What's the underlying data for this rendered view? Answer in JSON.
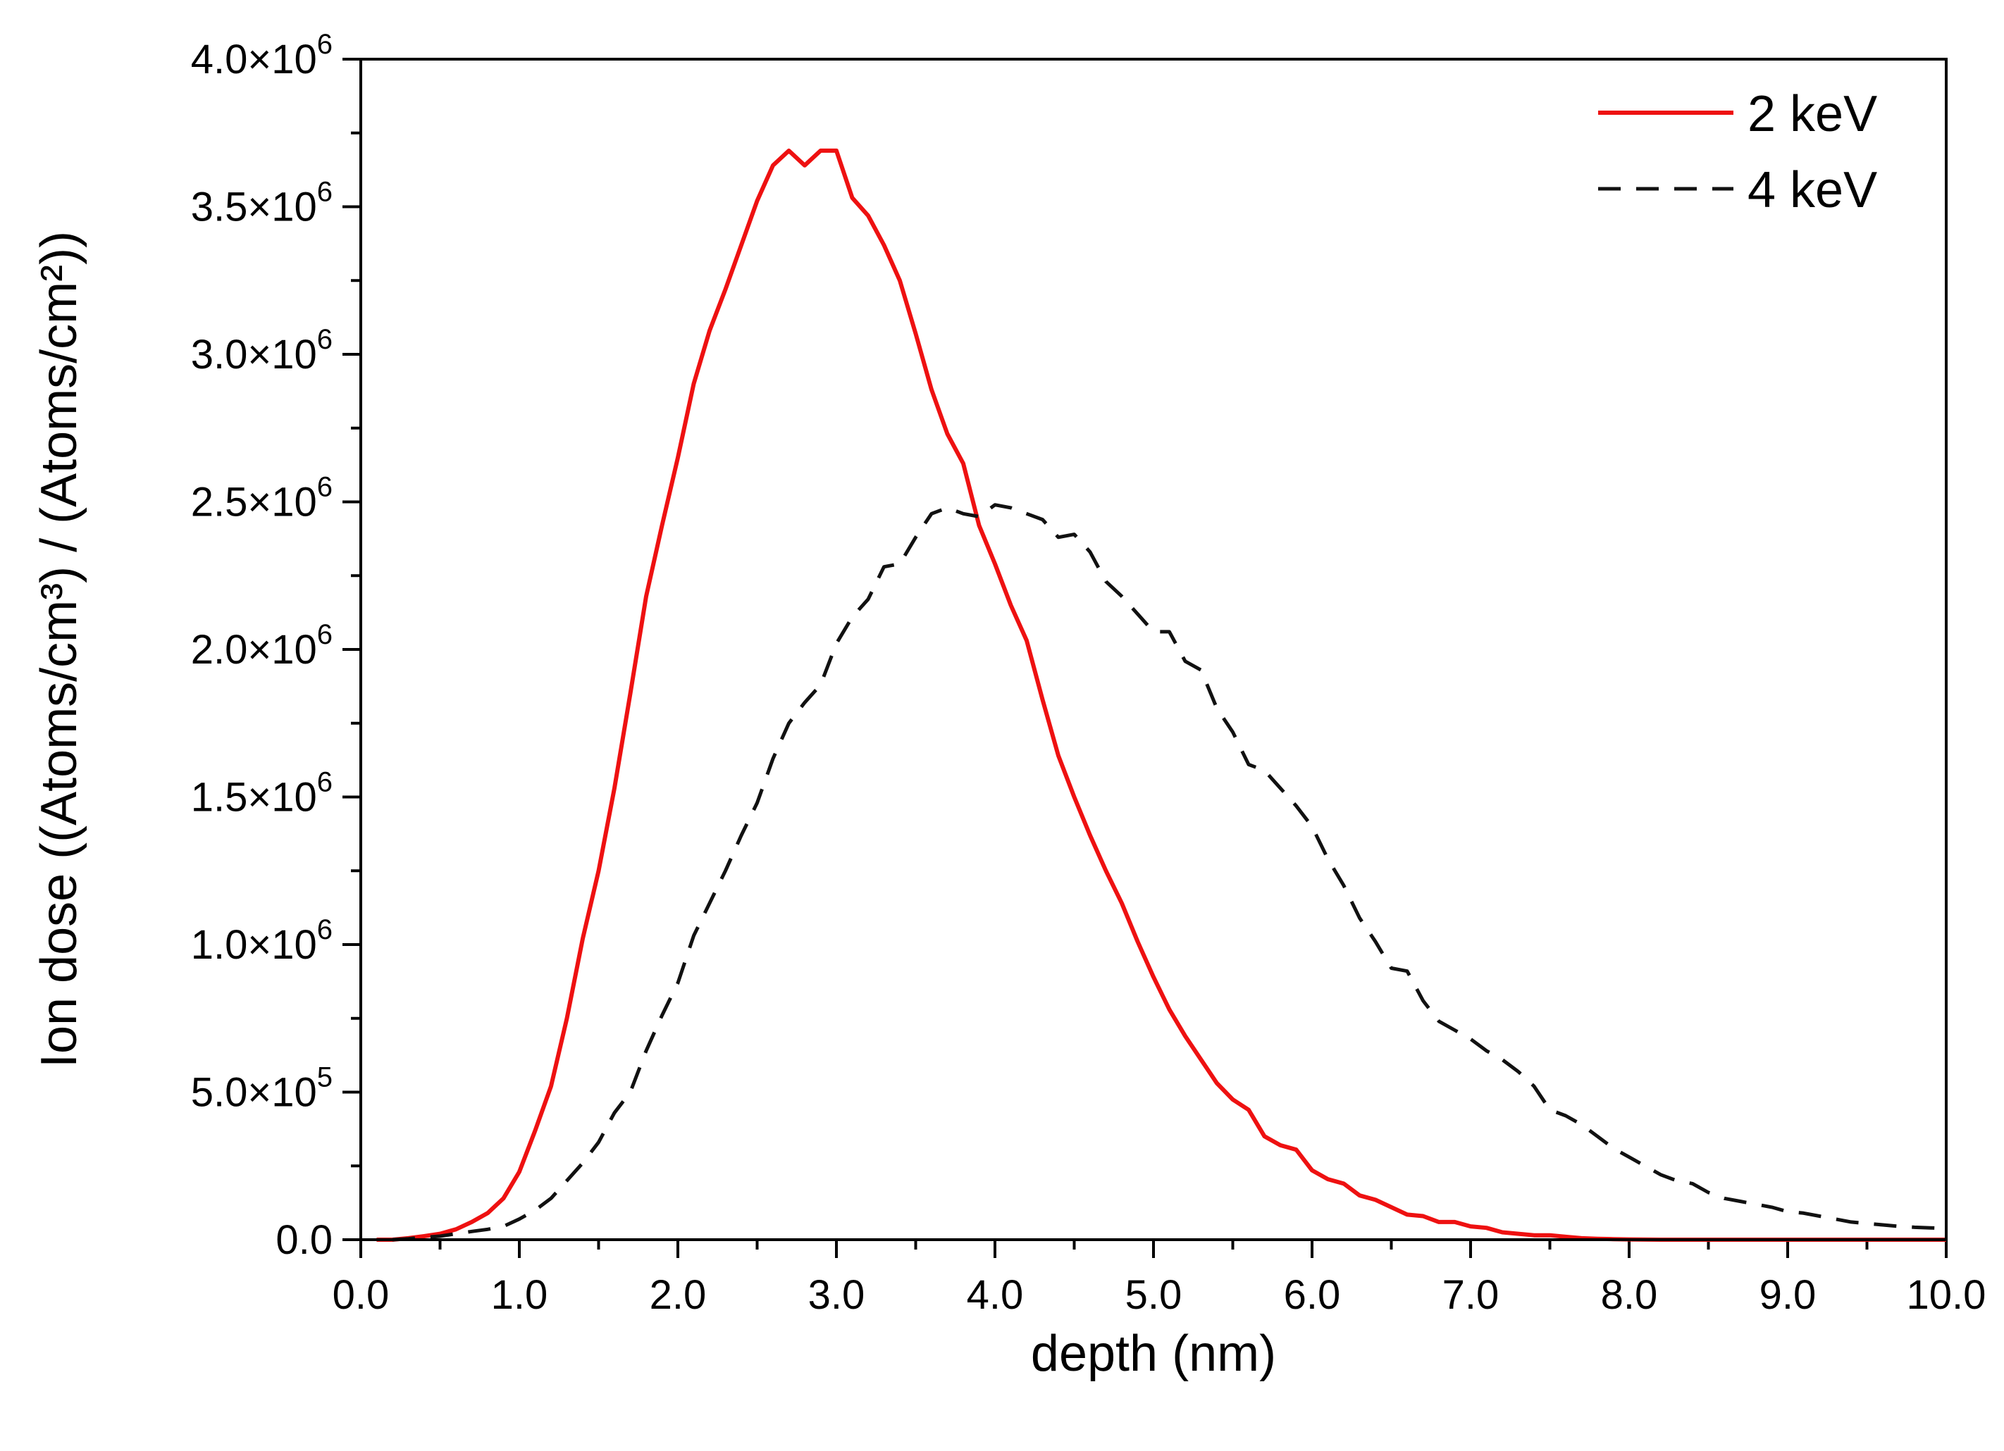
{
  "chart_data": {
    "type": "line",
    "title": "",
    "xlabel": "depth (nm)",
    "ylabel": "Ion dose ((Atoms/cm³) / (Atoms/cm²))",
    "xlim": [
      0.0,
      10.0
    ],
    "ylim": [
      0,
      4000000
    ],
    "x_ticks": [
      0,
      1,
      2,
      3,
      4,
      5,
      6,
      7,
      8,
      9,
      10
    ],
    "x_tick_labels": [
      "0.0",
      "1.0",
      "2.0",
      "3.0",
      "4.0",
      "5.0",
      "6.0",
      "7.0",
      "8.0",
      "9.0",
      "10.0"
    ],
    "y_ticks": [
      0,
      500000,
      1000000,
      1500000,
      2000000,
      2500000,
      3000000,
      3500000,
      4000000
    ],
    "y_tick_labels": [
      {
        "mantissa": "0.0",
        "exp": ""
      },
      {
        "mantissa": "5.0×10",
        "exp": "5"
      },
      {
        "mantissa": "1.0×10",
        "exp": "6"
      },
      {
        "mantissa": "1.5×10",
        "exp": "6"
      },
      {
        "mantissa": "2.0×10",
        "exp": "6"
      },
      {
        "mantissa": "2.5×10",
        "exp": "6"
      },
      {
        "mantissa": "3.0×10",
        "exp": "6"
      },
      {
        "mantissa": "3.5×10",
        "exp": "6"
      },
      {
        "mantissa": "4.0×10",
        "exp": "6"
      }
    ],
    "legend_position": "top-right",
    "series": [
      {
        "name": "2 keV",
        "color": "#ee1111",
        "style": "solid",
        "x": [
          0.1,
          0.2,
          0.3,
          0.4,
          0.5,
          0.6,
          0.7,
          0.8,
          0.9,
          1.0,
          1.1,
          1.2,
          1.3,
          1.4,
          1.5,
          1.6,
          1.7,
          1.8,
          1.9,
          2.0,
          2.1,
          2.2,
          2.3,
          2.4,
          2.5,
          2.6,
          2.7,
          2.8,
          2.9,
          3.0,
          3.1,
          3.2,
          3.3,
          3.4,
          3.5,
          3.6,
          3.7,
          3.8,
          3.9,
          4.0,
          4.1,
          4.2,
          4.3,
          4.4,
          4.5,
          4.6,
          4.7,
          4.8,
          4.9,
          5.0,
          5.1,
          5.2,
          5.3,
          5.4,
          5.5,
          5.6,
          5.7,
          5.8,
          5.9,
          6.0,
          6.1,
          6.2,
          6.3,
          6.4,
          6.5,
          6.6,
          6.7,
          6.8,
          6.9,
          7.0,
          7.1,
          7.2,
          7.3,
          7.4,
          7.5,
          7.6,
          7.7,
          7.8,
          7.9,
          8.0,
          8.2,
          8.4,
          8.6,
          8.8,
          9.0,
          9.5,
          10.0
        ],
        "values": [
          0,
          0,
          5000,
          12000,
          20000,
          35000,
          60000,
          90000,
          140000,
          230000,
          370000,
          520000,
          750000,
          1020000,
          1250000,
          1530000,
          1850000,
          2180000,
          2420000,
          2650000,
          2900000,
          3080000,
          3220000,
          3370000,
          3520000,
          3640000,
          3690000,
          3640000,
          3690000,
          3690000,
          3530000,
          3470000,
          3370000,
          3250000,
          3070000,
          2880000,
          2730000,
          2630000,
          2420000,
          2290000,
          2150000,
          2030000,
          1830000,
          1640000,
          1500000,
          1370000,
          1250000,
          1140000,
          1010000,
          890000,
          780000,
          690000,
          610000,
          530000,
          475000,
          440000,
          350000,
          320000,
          305000,
          235000,
          205000,
          190000,
          150000,
          135000,
          110000,
          85000,
          80000,
          60000,
          60000,
          45000,
          40000,
          25000,
          20000,
          15000,
          15000,
          10000,
          5000,
          3000,
          2000,
          1000,
          0,
          0,
          0,
          0,
          0,
          0,
          0
        ]
      },
      {
        "name": "4 keV",
        "color": "#111111",
        "style": "dashed",
        "x": [
          0.2,
          0.3,
          0.4,
          0.5,
          0.6,
          0.7,
          0.8,
          0.9,
          1.0,
          1.1,
          1.2,
          1.3,
          1.4,
          1.5,
          1.6,
          1.7,
          1.8,
          1.9,
          2.0,
          2.1,
          2.2,
          2.3,
          2.4,
          2.5,
          2.6,
          2.7,
          2.8,
          2.9,
          3.0,
          3.1,
          3.2,
          3.3,
          3.4,
          3.5,
          3.6,
          3.7,
          3.8,
          3.9,
          4.0,
          4.1,
          4.2,
          4.3,
          4.4,
          4.5,
          4.6,
          4.7,
          4.8,
          4.9,
          5.0,
          5.1,
          5.2,
          5.3,
          5.4,
          5.5,
          5.6,
          5.7,
          5.8,
          5.9,
          6.0,
          6.1,
          6.2,
          6.3,
          6.4,
          6.5,
          6.6,
          6.7,
          6.8,
          6.9,
          7.0,
          7.1,
          7.2,
          7.3,
          7.4,
          7.5,
          7.6,
          7.7,
          7.8,
          7.9,
          8.0,
          8.1,
          8.2,
          8.3,
          8.4,
          8.5,
          8.6,
          8.7,
          8.8,
          8.9,
          9.0,
          9.1,
          9.2,
          9.3,
          9.4,
          9.5,
          9.6,
          9.7,
          9.8,
          9.9,
          10.0
        ],
        "values": [
          0,
          3000,
          8000,
          12000,
          20000,
          28000,
          35000,
          45000,
          70000,
          100000,
          140000,
          200000,
          260000,
          330000,
          430000,
          500000,
          640000,
          760000,
          870000,
          1030000,
          1140000,
          1250000,
          1370000,
          1480000,
          1630000,
          1750000,
          1820000,
          1880000,
          2020000,
          2110000,
          2170000,
          2280000,
          2290000,
          2380000,
          2460000,
          2480000,
          2460000,
          2450000,
          2490000,
          2480000,
          2460000,
          2440000,
          2380000,
          2390000,
          2330000,
          2230000,
          2180000,
          2120000,
          2060000,
          2060000,
          1960000,
          1930000,
          1800000,
          1720000,
          1610000,
          1590000,
          1530000,
          1470000,
          1400000,
          1290000,
          1200000,
          1090000,
          1010000,
          920000,
          910000,
          810000,
          740000,
          710000,
          680000,
          640000,
          610000,
          570000,
          520000,
          440000,
          420000,
          390000,
          350000,
          310000,
          280000,
          250000,
          220000,
          200000,
          190000,
          160000,
          140000,
          130000,
          120000,
          110000,
          95000,
          90000,
          80000,
          70000,
          60000,
          55000,
          50000,
          45000,
          42000,
          40000,
          38000
        ]
      }
    ]
  }
}
